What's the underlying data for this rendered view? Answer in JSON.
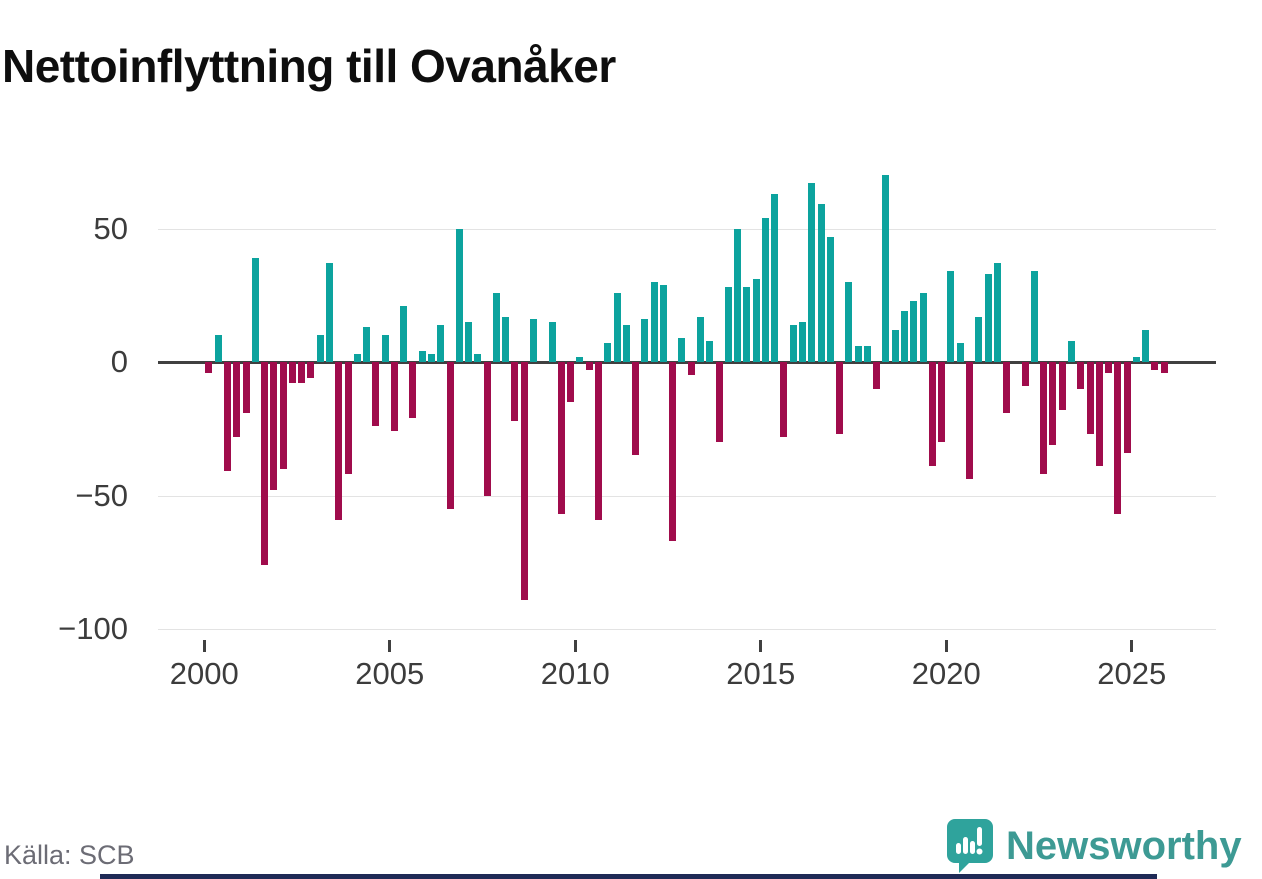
{
  "header": {
    "title": "Nettoinflyttning till Ovanåker"
  },
  "footer": {
    "source": "Källa: SCB",
    "brand": "Newsworthy"
  },
  "colors": {
    "positive": "#0ca39e",
    "negative": "#a00c4c",
    "axis": "#404040",
    "grid": "#e3e3e3",
    "brand_teal": "#3d9a94",
    "accent_strip": "#1f2a56"
  },
  "chart_data": {
    "type": "bar",
    "title": "Nettoinflyttning till Ovanåker",
    "xlabel": "",
    "ylabel": "",
    "freq": "quarterly",
    "start": "2000-Q1",
    "end": "2025-Q4",
    "ylim": [
      -100,
      75
    ],
    "y_ticks": [
      50,
      0,
      -50,
      -100
    ],
    "y_tick_labels": [
      "50",
      "0",
      "−50",
      "−100"
    ],
    "x_tick_labels": [
      "2000",
      "2005",
      "2010",
      "2015",
      "2020",
      "2025"
    ],
    "grid": "horizontal",
    "legend": "none",
    "positive_color": "#0ca39e",
    "negative_color": "#a00c4c",
    "years": [
      {
        "year": 2000,
        "values": [
          -4,
          10,
          -41,
          -28
        ]
      },
      {
        "year": 2001,
        "values": [
          -19,
          39,
          -76,
          -48
        ]
      },
      {
        "year": 2002,
        "values": [
          -40,
          -8,
          -8,
          -6
        ]
      },
      {
        "year": 2003,
        "values": [
          10,
          37,
          -59,
          -42
        ]
      },
      {
        "year": 2004,
        "values": [
          3,
          13,
          -24,
          10
        ]
      },
      {
        "year": 2005,
        "values": [
          -26,
          21,
          -21,
          4
        ]
      },
      {
        "year": 2006,
        "values": [
          3,
          14,
          -55,
          50
        ]
      },
      {
        "year": 2007,
        "values": [
          15,
          3,
          -50,
          26
        ]
      },
      {
        "year": 2008,
        "values": [
          17,
          -22,
          -89,
          16
        ]
      },
      {
        "year": 2009,
        "values": [
          0,
          15,
          -57,
          -15
        ]
      },
      {
        "year": 2010,
        "values": [
          2,
          -3,
          -59,
          7
        ]
      },
      {
        "year": 2011,
        "values": [
          26,
          14,
          -35,
          16
        ]
      },
      {
        "year": 2012,
        "values": [
          30,
          29,
          -67,
          9
        ]
      },
      {
        "year": 2013,
        "values": [
          -5,
          17,
          8,
          -30
        ]
      },
      {
        "year": 2014,
        "values": [
          28,
          50,
          28,
          31
        ]
      },
      {
        "year": 2015,
        "values": [
          54,
          63,
          -28,
          14
        ]
      },
      {
        "year": 2016,
        "values": [
          15,
          67,
          59,
          47
        ]
      },
      {
        "year": 2017,
        "values": [
          -27,
          30,
          6,
          6
        ]
      },
      {
        "year": 2018,
        "values": [
          -10,
          70,
          12,
          19
        ]
      },
      {
        "year": 2019,
        "values": [
          23,
          26,
          -39,
          -30
        ]
      },
      {
        "year": 2020,
        "values": [
          34,
          7,
          -44,
          17
        ]
      },
      {
        "year": 2021,
        "values": [
          33,
          37,
          -19,
          0
        ]
      },
      {
        "year": 2022,
        "values": [
          -9,
          34,
          -42,
          -31
        ]
      },
      {
        "year": 2023,
        "values": [
          -18,
          8,
          -10,
          -27
        ]
      },
      {
        "year": 2024,
        "values": [
          -39,
          -4,
          -57,
          -34
        ]
      },
      {
        "year": 2025,
        "values": [
          2,
          12,
          -3,
          -4
        ]
      }
    ]
  }
}
